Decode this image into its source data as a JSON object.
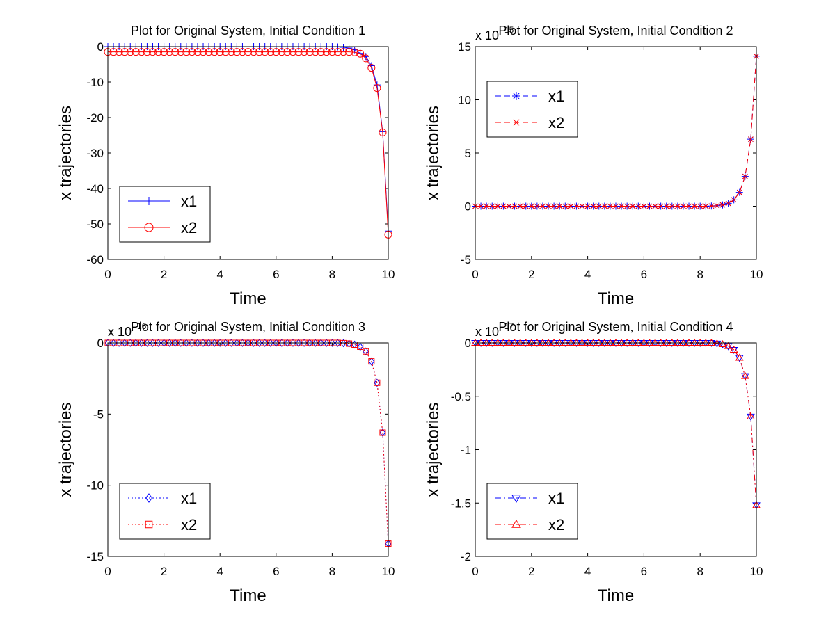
{
  "chart_data": [
    {
      "type": "line",
      "title": "Plot for Original System, Initial Condition 1",
      "xlabel": "Time",
      "ylabel": "x trajectories",
      "x": [
        0,
        0.2,
        0.4,
        0.6,
        0.8,
        1,
        1.2,
        1.4,
        1.6,
        1.8,
        2,
        2.2,
        2.4,
        2.6,
        2.8,
        3,
        3.2,
        3.4,
        3.6,
        3.8,
        4,
        4.2,
        4.4,
        4.6,
        4.8,
        5,
        5.2,
        5.4,
        5.6,
        5.8,
        6,
        6.2,
        6.4,
        6.6,
        6.8,
        7,
        7.2,
        7.4,
        7.6,
        7.8,
        8,
        8.2,
        8.4,
        8.6,
        8.8,
        9,
        9.2,
        9.4,
        9.6,
        9.8,
        10
      ],
      "series": [
        {
          "name": "x1",
          "color": "#0000ff",
          "marker": "plus",
          "linestyle": "solid",
          "values": [
            0,
            0,
            0,
            0,
            0,
            0,
            0,
            0,
            0,
            0,
            0,
            0,
            0,
            0,
            0,
            0,
            0,
            0,
            0,
            0,
            0,
            0,
            0,
            0,
            0,
            0,
            0,
            0,
            0,
            0,
            0,
            0,
            0,
            0,
            0,
            0,
            0,
            0,
            0,
            0,
            0,
            -0.1,
            -0.2,
            -0.4,
            -0.9,
            -1.9,
            -2.8,
            -5.4,
            -10.8,
            -24,
            -52
          ]
        },
        {
          "name": "x2",
          "color": "#ff0000",
          "marker": "circle",
          "linestyle": "solid",
          "values": [
            -1.5,
            -1.5,
            -1.5,
            -1.5,
            -1.5,
            -1.5,
            -1.5,
            -1.5,
            -1.5,
            -1.5,
            -1.5,
            -1.5,
            -1.5,
            -1.5,
            -1.5,
            -1.5,
            -1.5,
            -1.5,
            -1.5,
            -1.5,
            -1.5,
            -1.5,
            -1.5,
            -1.5,
            -1.5,
            -1.5,
            -1.5,
            -1.5,
            -1.5,
            -1.5,
            -1.5,
            -1.5,
            -1.5,
            -1.5,
            -1.5,
            -1.5,
            -1.5,
            -1.5,
            -1.5,
            -1.5,
            -1.5,
            -1.5,
            -1.5,
            -1.5,
            -1.6,
            -2,
            -3.3,
            -6,
            -11.7,
            -24.2,
            -53
          ]
        }
      ],
      "xlim": [
        0,
        10
      ],
      "xticks": [
        0,
        2,
        4,
        6,
        8,
        10
      ],
      "ylim": [
        -60,
        0
      ],
      "yticks": [
        -60,
        -50,
        -40,
        -30,
        -20,
        -10,
        0
      ],
      "legend": "lower left"
    },
    {
      "type": "line",
      "title": "Plot for Original System, Initial Condition 2",
      "xlabel": "Time",
      "ylabel": "x trajectories",
      "y_multiplier": {
        "base": "x 10",
        "power": "15"
      },
      "x": [
        0,
        0.2,
        0.4,
        0.6,
        0.8,
        1,
        1.2,
        1.4,
        1.6,
        1.8,
        2,
        2.2,
        2.4,
        2.6,
        2.8,
        3,
        3.2,
        3.4,
        3.6,
        3.8,
        4,
        4.2,
        4.4,
        4.6,
        4.8,
        5,
        5.2,
        5.4,
        5.6,
        5.8,
        6,
        6.2,
        6.4,
        6.6,
        6.8,
        7,
        7.2,
        7.4,
        7.6,
        7.8,
        8,
        8.2,
        8.4,
        8.6,
        8.8,
        9,
        9.2,
        9.4,
        9.6,
        9.8,
        10
      ],
      "series": [
        {
          "name": "x1",
          "color": "#0000ff",
          "marker": "star",
          "linestyle": "dashed",
          "values": [
            0,
            0,
            0,
            0,
            0,
            0,
            0,
            0,
            0,
            0,
            0,
            0,
            0,
            0,
            0,
            0,
            0,
            0,
            0,
            0,
            0,
            0,
            0,
            0,
            0,
            0,
            0,
            0,
            0,
            0,
            0,
            0,
            0,
            0,
            0,
            0,
            0,
            0,
            0,
            0,
            0,
            0,
            0.02,
            0.05,
            0.12,
            0.27,
            0.6,
            1.3,
            2.8,
            6.3,
            14.1
          ]
        },
        {
          "name": "x2",
          "color": "#ff0000",
          "marker": "x",
          "linestyle": "dashed",
          "values": [
            0,
            0,
            0,
            0,
            0,
            0,
            0,
            0,
            0,
            0,
            0,
            0,
            0,
            0,
            0,
            0,
            0,
            0,
            0,
            0,
            0,
            0,
            0,
            0,
            0,
            0,
            0,
            0,
            0,
            0,
            0,
            0,
            0,
            0,
            0,
            0,
            0,
            0,
            0,
            0,
            0,
            0,
            0.02,
            0.05,
            0.12,
            0.27,
            0.6,
            1.3,
            2.8,
            6.3,
            14.1
          ]
        }
      ],
      "xlim": [
        0,
        10
      ],
      "xticks": [
        0,
        2,
        4,
        6,
        8,
        10
      ],
      "ylim": [
        -5,
        15
      ],
      "yticks": [
        -5,
        0,
        5,
        10,
        15
      ],
      "legend": "upper left"
    },
    {
      "type": "line",
      "title": "Plot for Original System, Initial Condition 3",
      "xlabel": "Time",
      "ylabel": "x trajectories",
      "y_multiplier": {
        "base": "x 10",
        "power": "16"
      },
      "x": [
        0,
        0.2,
        0.4,
        0.6,
        0.8,
        1,
        1.2,
        1.4,
        1.6,
        1.8,
        2,
        2.2,
        2.4,
        2.6,
        2.8,
        3,
        3.2,
        3.4,
        3.6,
        3.8,
        4,
        4.2,
        4.4,
        4.6,
        4.8,
        5,
        5.2,
        5.4,
        5.6,
        5.8,
        6,
        6.2,
        6.4,
        6.6,
        6.8,
        7,
        7.2,
        7.4,
        7.6,
        7.8,
        8,
        8.2,
        8.4,
        8.6,
        8.8,
        9,
        9.2,
        9.4,
        9.6,
        9.8,
        10
      ],
      "series": [
        {
          "name": "x1",
          "color": "#0000ff",
          "marker": "diamond",
          "linestyle": "dotted",
          "values": [
            0,
            0,
            0,
            0,
            0,
            0,
            0,
            0,
            0,
            0,
            0,
            0,
            0,
            0,
            0,
            0,
            0,
            0,
            0,
            0,
            0,
            0,
            0,
            0,
            0,
            0,
            0,
            0,
            0,
            0,
            0,
            0,
            0,
            0,
            0,
            0,
            0,
            0,
            0,
            0,
            0,
            0,
            -0.02,
            -0.05,
            -0.12,
            -0.27,
            -0.6,
            -1.3,
            -2.8,
            -6.3,
            -14.1
          ]
        },
        {
          "name": "x2",
          "color": "#ff0000",
          "marker": "square",
          "linestyle": "dotted",
          "values": [
            0,
            0,
            0,
            0,
            0,
            0,
            0,
            0,
            0,
            0,
            0,
            0,
            0,
            0,
            0,
            0,
            0,
            0,
            0,
            0,
            0,
            0,
            0,
            0,
            0,
            0,
            0,
            0,
            0,
            0,
            0,
            0,
            0,
            0,
            0,
            0,
            0,
            0,
            0,
            0,
            0,
            0,
            -0.02,
            -0.05,
            -0.12,
            -0.27,
            -0.6,
            -1.3,
            -2.8,
            -6.3,
            -14.1
          ]
        }
      ],
      "xlim": [
        0,
        10
      ],
      "xticks": [
        0,
        2,
        4,
        6,
        8,
        10
      ],
      "ylim": [
        -15,
        0
      ],
      "yticks": [
        -15,
        -10,
        -5,
        0
      ],
      "legend": "lower left"
    },
    {
      "type": "line",
      "title": "Plot for Original System, Initial Condition 4",
      "xlabel": "Time",
      "ylabel": "x trajectories",
      "y_multiplier": {
        "base": "x 10",
        "power": "17"
      },
      "x": [
        0,
        0.2,
        0.4,
        0.6,
        0.8,
        1,
        1.2,
        1.4,
        1.6,
        1.8,
        2,
        2.2,
        2.4,
        2.6,
        2.8,
        3,
        3.2,
        3.4,
        3.6,
        3.8,
        4,
        4.2,
        4.4,
        4.6,
        4.8,
        5,
        5.2,
        5.4,
        5.6,
        5.8,
        6,
        6.2,
        6.4,
        6.6,
        6.8,
        7,
        7.2,
        7.4,
        7.6,
        7.8,
        8,
        8.2,
        8.4,
        8.6,
        8.8,
        9,
        9.2,
        9.4,
        9.6,
        9.8,
        10
      ],
      "series": [
        {
          "name": "x1",
          "color": "#0000ff",
          "marker": "triangle-down",
          "linestyle": "dashdot",
          "values": [
            0,
            0,
            0,
            0,
            0,
            0,
            0,
            0,
            0,
            0,
            0,
            0,
            0,
            0,
            0,
            0,
            0,
            0,
            0,
            0,
            0,
            0,
            0,
            0,
            0,
            0,
            0,
            0,
            0,
            0,
            0,
            0,
            0,
            0,
            0,
            0,
            0,
            0,
            0,
            0,
            0,
            0,
            0,
            -0.006,
            -0.013,
            -0.03,
            -0.065,
            -0.14,
            -0.31,
            -0.69,
            -1.52
          ]
        },
        {
          "name": "x2",
          "color": "#ff0000",
          "marker": "triangle-up",
          "linestyle": "dashdot",
          "values": [
            0,
            0,
            0,
            0,
            0,
            0,
            0,
            0,
            0,
            0,
            0,
            0,
            0,
            0,
            0,
            0,
            0,
            0,
            0,
            0,
            0,
            0,
            0,
            0,
            0,
            0,
            0,
            0,
            0,
            0,
            0,
            0,
            0,
            0,
            0,
            0,
            0,
            0,
            0,
            0,
            0,
            0,
            0,
            -0.006,
            -0.013,
            -0.03,
            -0.065,
            -0.14,
            -0.31,
            -0.69,
            -1.52
          ]
        }
      ],
      "xlim": [
        0,
        10
      ],
      "xticks": [
        0,
        2,
        4,
        6,
        8,
        10
      ],
      "ylim": [
        -2,
        0
      ],
      "yticks": [
        -2,
        -1.5,
        -1,
        -0.5,
        0
      ],
      "legend": "lower left"
    }
  ]
}
